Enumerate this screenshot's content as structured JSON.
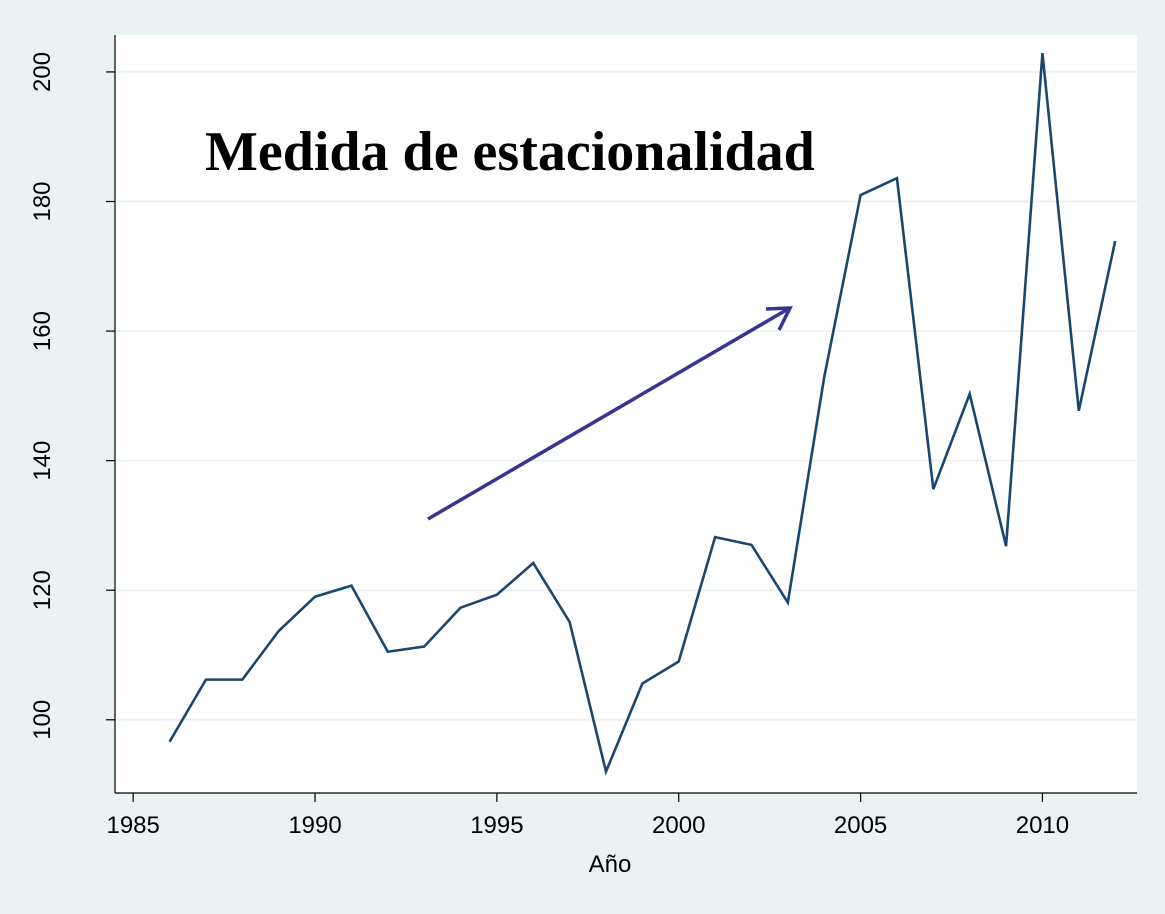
{
  "chart_data": {
    "type": "line",
    "annotation": "Medida de estacionalidad",
    "x_label": "Año",
    "x": [
      1986,
      1987,
      1988,
      1989,
      1990,
      1991,
      1992,
      1993,
      1994,
      1995,
      1996,
      1997,
      1998,
      1999,
      2000,
      2001,
      2002,
      2003,
      2004,
      2005,
      2006,
      2007,
      2008,
      2009,
      2010,
      2011,
      2012
    ],
    "series": [
      {
        "color": "#1a476f",
        "values": [
          96.6,
          106.2,
          106.2,
          113.7,
          119.0,
          120.7,
          110.5,
          111.3,
          117.3,
          119.3,
          124.2,
          115.1,
          92.0,
          105.6,
          109.0,
          128.2,
          127.0,
          118.1,
          152.9,
          181.0,
          183.6,
          135.6,
          150.3,
          126.8,
          202.9,
          147.7,
          173.9
        ]
      }
    ],
    "xlim": [
      1984.5,
      2012.6
    ],
    "xticks": [
      1985,
      1990,
      1995,
      2000,
      2005,
      2010
    ],
    "ylim": [
      88.7,
      205.7
    ],
    "yticks": [
      100,
      120,
      140,
      160,
      180,
      200
    ],
    "grid": true
  }
}
